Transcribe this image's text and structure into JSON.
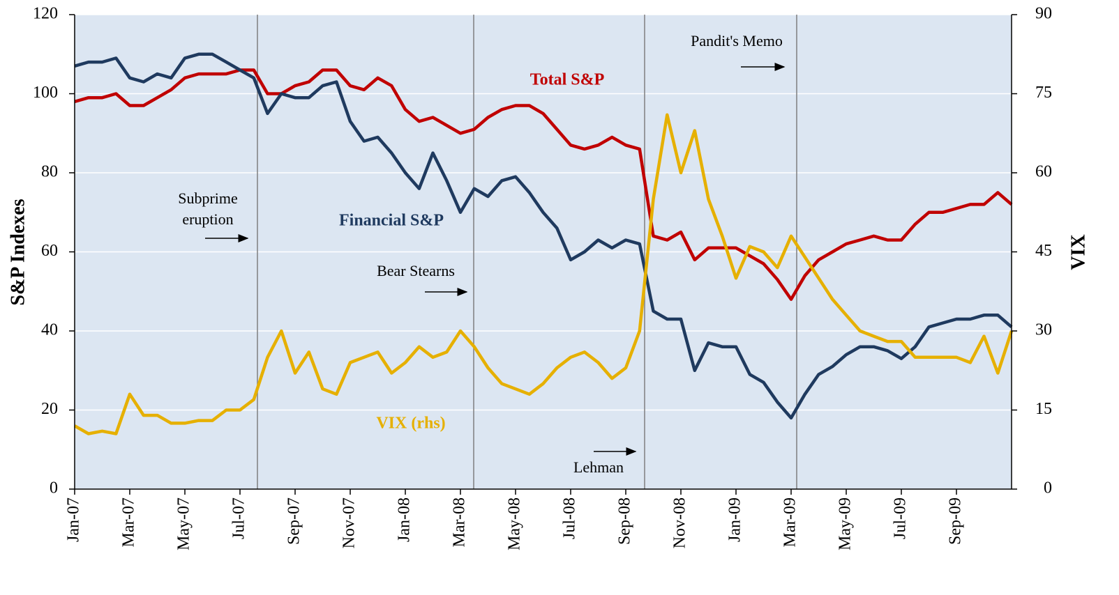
{
  "chart_data": {
    "type": "line",
    "ylabel": "S&P Indexes",
    "y2label": "VIX",
    "categories": [
      "Jan-07",
      null,
      null,
      null,
      "Mar-07",
      null,
      null,
      null,
      "May-07",
      null,
      null,
      null,
      "Jul-07",
      null,
      null,
      null,
      "Sep-07",
      null,
      null,
      null,
      "Nov-07",
      null,
      null,
      null,
      "Jan-08",
      null,
      null,
      null,
      "Mar-08",
      null,
      null,
      null,
      "May-08",
      null,
      null,
      null,
      "Jul-08",
      null,
      null,
      null,
      "Sep-08",
      null,
      null,
      null,
      "Nov-08",
      null,
      null,
      null,
      "Jan-09",
      null,
      null,
      null,
      "Mar-09",
      null,
      null,
      null,
      "May-09",
      null,
      null,
      null,
      "Jul-09",
      null,
      null,
      null,
      "Sep-09",
      null,
      null,
      null,
      null
    ],
    "series": [
      {
        "name": "Total S&P",
        "color": "#c00000",
        "values": [
          98,
          99,
          99,
          100,
          97,
          97,
          99,
          101,
          104,
          105,
          105,
          105,
          106,
          106,
          100,
          100,
          102,
          103,
          106,
          106,
          102,
          101,
          104,
          102,
          96,
          93,
          94,
          92,
          90,
          91,
          94,
          96,
          97,
          97,
          95,
          91,
          87,
          86,
          87,
          89,
          87,
          86,
          64,
          63,
          65,
          58,
          61,
          61,
          61,
          59,
          57,
          53,
          48,
          54,
          58,
          60,
          62,
          63,
          64,
          63,
          63,
          67,
          70,
          70,
          71,
          72,
          72,
          75,
          72
        ]
      },
      {
        "name": "Financial S&P",
        "color": "#1f3a5f",
        "values": [
          107,
          108,
          108,
          109,
          104,
          103,
          105,
          104,
          109,
          110,
          110,
          108,
          106,
          104,
          95,
          100,
          99,
          99,
          102,
          103,
          93,
          88,
          89,
          85,
          80,
          76,
          85,
          78,
          70,
          76,
          74,
          78,
          79,
          75,
          70,
          66,
          58,
          60,
          63,
          61,
          63,
          62,
          45,
          43,
          43,
          30,
          37,
          36,
          36,
          29,
          27,
          22,
          18,
          24,
          29,
          31,
          34,
          36,
          36,
          35,
          33,
          36,
          41,
          42,
          43,
          43,
          44,
          44,
          41
        ]
      },
      {
        "name": "VIX (rhs)",
        "color": "#e6b000",
        "axis": "y2",
        "values": [
          12,
          10.5,
          11,
          10.5,
          18,
          14,
          14,
          12.5,
          12.5,
          13,
          13,
          15,
          15,
          17,
          25,
          30,
          22,
          26,
          19,
          18,
          24,
          25,
          26,
          22,
          24,
          27,
          25,
          26,
          30,
          27,
          23,
          20,
          19,
          18,
          20,
          23,
          25,
          26,
          24,
          21,
          23,
          30,
          55,
          71,
          60,
          68,
          55,
          48,
          40,
          46,
          45,
          42,
          48,
          44,
          40,
          36,
          33,
          30,
          29,
          28,
          28,
          25,
          25,
          25,
          25,
          24,
          29,
          22,
          30
        ]
      }
    ],
    "ylim": [
      0,
      120
    ],
    "yticks": [
      0,
      20,
      40,
      60,
      80,
      100,
      120
    ],
    "y2lim": [
      0,
      90
    ],
    "y2ticks": [
      0,
      15,
      30,
      45,
      60,
      75,
      90
    ],
    "grid": true,
    "annotations": [
      "Subprime",
      "eruption",
      "Bear Stearns",
      "Lehman",
      "Pandit's Memo"
    ]
  }
}
